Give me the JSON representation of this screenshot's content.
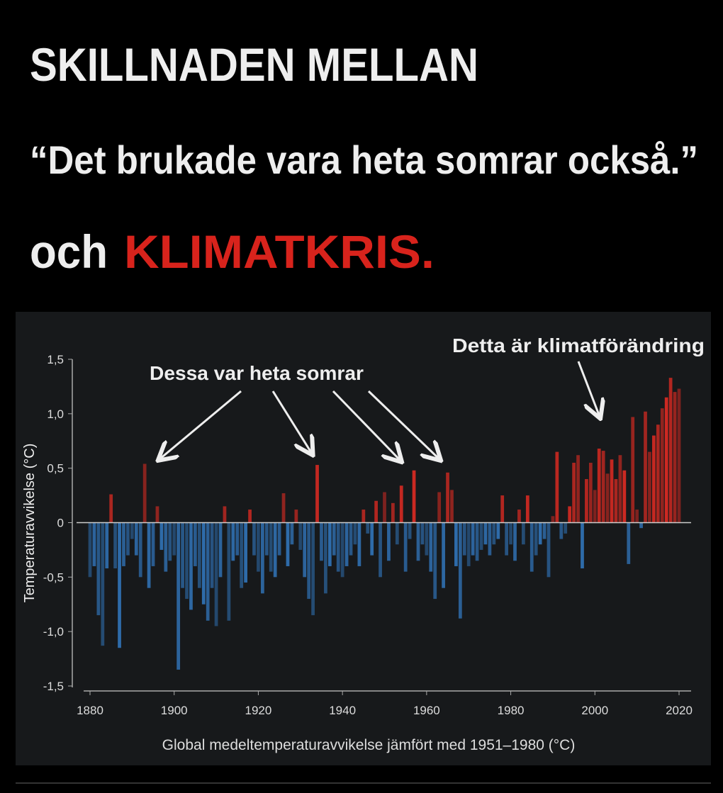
{
  "header": {
    "title": "SKILLNADEN MELLAN",
    "quote": "“Det brukade vara heta somrar också.”",
    "prefix": "och",
    "highlight": "KLIMATKRIS."
  },
  "chart_data": {
    "type": "bar",
    "ylabel": "Temperaturavvikelse (°C)",
    "xlabel": "Global medeltemperaturavvikelse jämfört med 1951–1980 (°C)",
    "annotations": [
      "Dessa var heta somrar",
      "Detta är klimatförändring"
    ],
    "positive_color": "#d42a22",
    "negative_color": "#2f6fb0",
    "xlim": [
      1880,
      2020
    ],
    "xticks": [
      1880,
      1900,
      1920,
      1940,
      1960,
      1980,
      2000,
      2020
    ],
    "ylim": [
      -1.5,
      1.5
    ],
    "yticks": [
      {
        "value": -1.5,
        "label": "-1,5"
      },
      {
        "value": -1.0,
        "label": "-1,0"
      },
      {
        "value": -0.5,
        "label": "-0,5"
      },
      0,
      {
        "value": 0.5,
        "label": "0,5"
      },
      {
        "value": 1.0,
        "label": "1,0"
      },
      {
        "value": 1.5,
        "label": "1,5"
      }
    ],
    "x": [
      1880,
      1881,
      1882,
      1883,
      1884,
      1885,
      1886,
      1887,
      1888,
      1889,
      1890,
      1891,
      1892,
      1893,
      1894,
      1895,
      1896,
      1897,
      1898,
      1899,
      1900,
      1901,
      1902,
      1903,
      1904,
      1905,
      1906,
      1907,
      1908,
      1909,
      1910,
      1911,
      1912,
      1913,
      1914,
      1915,
      1916,
      1917,
      1918,
      1919,
      1920,
      1921,
      1922,
      1923,
      1924,
      1925,
      1926,
      1927,
      1928,
      1929,
      1930,
      1931,
      1932,
      1933,
      1934,
      1935,
      1936,
      1937,
      1938,
      1939,
      1940,
      1941,
      1942,
      1943,
      1944,
      1945,
      1946,
      1947,
      1948,
      1949,
      1950,
      1951,
      1952,
      1953,
      1954,
      1955,
      1956,
      1957,
      1958,
      1959,
      1960,
      1961,
      1962,
      1963,
      1964,
      1965,
      1966,
      1967,
      1968,
      1969,
      1970,
      1971,
      1972,
      1973,
      1974,
      1975,
      1976,
      1977,
      1978,
      1979,
      1980,
      1981,
      1982,
      1983,
      1984,
      1985,
      1986,
      1987,
      1988,
      1989,
      1990,
      1991,
      1992,
      1993,
      1994,
      1995,
      1996,
      1997,
      1998,
      1999,
      2000,
      2001,
      2002,
      2003,
      2004,
      2005,
      2006,
      2007,
      2008,
      2009,
      2010,
      2011,
      2012,
      2013,
      2014,
      2015,
      2016,
      2017,
      2018,
      2019,
      2020
    ],
    "values": [
      -0.5,
      -0.4,
      -0.85,
      -1.13,
      -0.42,
      0.26,
      -0.42,
      -1.15,
      -0.4,
      -0.3,
      -0.15,
      -0.3,
      -0.5,
      0.54,
      -0.6,
      -0.4,
      0.15,
      -0.25,
      -0.45,
      -0.35,
      -0.3,
      -1.35,
      -0.6,
      -0.7,
      -0.8,
      -0.4,
      -0.6,
      -0.75,
      -0.9,
      -0.6,
      -0.95,
      -0.5,
      0.15,
      -0.9,
      -0.35,
      -0.3,
      -0.6,
      -0.55,
      0.12,
      -0.3,
      -0.45,
      -0.65,
      -0.3,
      -0.45,
      -0.5,
      -0.3,
      0.27,
      -0.4,
      -0.2,
      0.12,
      -0.25,
      -0.5,
      -0.7,
      -0.85,
      0.53,
      -0.35,
      -0.65,
      -0.4,
      -0.3,
      -0.45,
      -0.5,
      -0.4,
      -0.3,
      -0.2,
      -0.4,
      0.12,
      -0.1,
      -0.3,
      0.2,
      -0.5,
      0.28,
      -0.35,
      0.18,
      -0.2,
      0.34,
      -0.45,
      -0.15,
      0.48,
      -0.35,
      -0.2,
      -0.3,
      -0.45,
      -0.7,
      0.28,
      -0.6,
      0.46,
      0.3,
      -0.4,
      -0.88,
      -0.3,
      -0.4,
      -0.3,
      -0.35,
      -0.25,
      -0.2,
      -0.3,
      -0.2,
      -0.15,
      0.25,
      -0.3,
      -0.2,
      -0.35,
      0.12,
      -0.2,
      0.25,
      -0.45,
      -0.3,
      -0.2,
      -0.15,
      -0.5,
      0.06,
      0.65,
      -0.15,
      -0.1,
      0.15,
      0.55,
      0.62,
      -0.42,
      0.4,
      0.55,
      0.3,
      0.68,
      0.66,
      0.45,
      0.58,
      0.4,
      0.62,
      0.48,
      -0.38,
      0.97,
      0.12,
      -0.05,
      1.02,
      0.65,
      0.8,
      0.9,
      1.05,
      1.15,
      1.33,
      1.2,
      1.23
    ]
  }
}
